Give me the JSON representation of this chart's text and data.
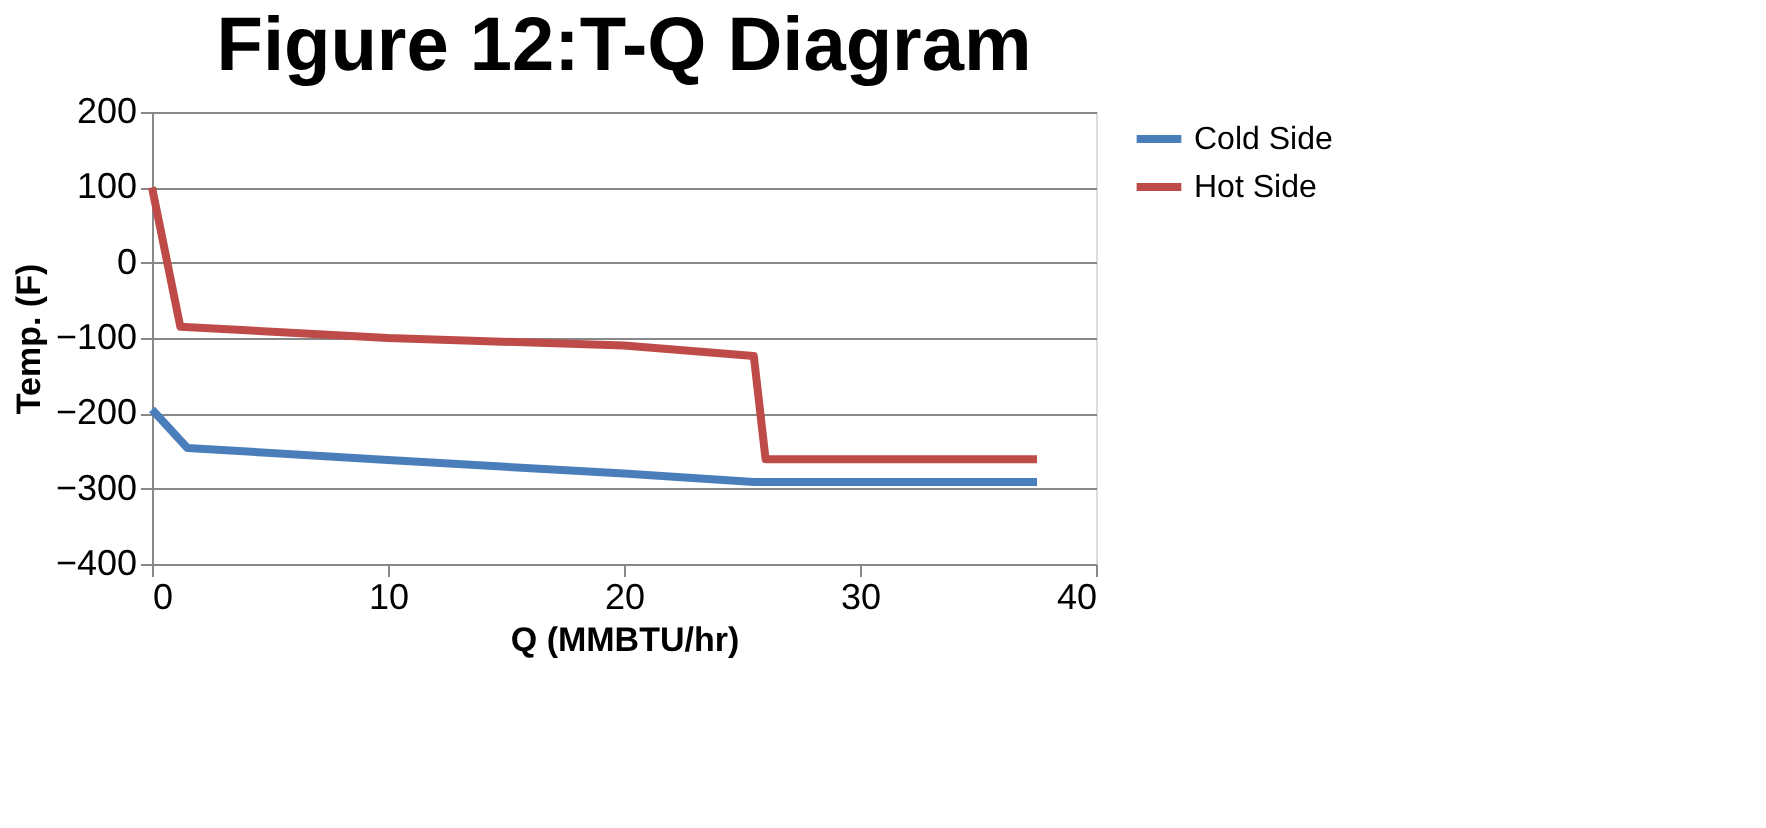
{
  "chart_data": {
    "type": "line",
    "title": "Figure 12:T-Q Diagram",
    "xlabel": "Q (MMBTU/hr)",
    "ylabel": "Temp. (F)",
    "series": [
      {
        "name": "Cold Side",
        "color": "#4a7ebb",
        "x": [
          0,
          1.5,
          10,
          20,
          25.5,
          37.5
        ],
        "values": [
          -195,
          -246,
          -262,
          -280,
          -291,
          -291
        ]
      },
      {
        "name": "Hot Side",
        "color": "#be4b48",
        "x": [
          0,
          1.2,
          10,
          20,
          25.5,
          26,
          37.5
        ],
        "values": [
          100,
          -85,
          -100,
          -110,
          -124,
          -261,
          -261
        ]
      }
    ],
    "xlim": [
      0,
      40
    ],
    "xticks": [
      0,
      10,
      20,
      30,
      40
    ],
    "ylim": [
      -400,
      200
    ],
    "yticks": [
      -400,
      -300,
      -200,
      -100,
      0,
      100,
      200
    ],
    "grid": "y",
    "legend": "right",
    "marker": "none",
    "line_style": "solid"
  }
}
